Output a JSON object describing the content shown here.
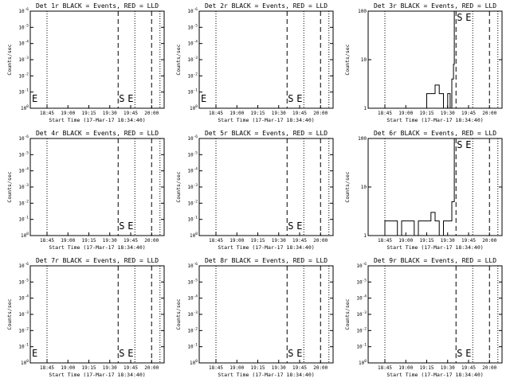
{
  "chart_data": [
    {
      "type": "line",
      "title": "Det 1r BLACK = Events, RED = LLD",
      "xlabel": "Start Time (17-Mar-17 18:34:40)",
      "ylabel": "Counts/sec",
      "scale": "log",
      "yticks": [
        "10^0",
        "10^-1",
        "10^-2",
        "10^-3",
        "10^-4",
        "10^-5",
        "10^-6"
      ],
      "xticks": [
        "18:45",
        "19:00",
        "19:15",
        "19:30",
        "19:45",
        "20:00"
      ],
      "markers": [
        "E",
        "S",
        "E"
      ],
      "events": []
    },
    {
      "type": "line",
      "title": "Det 2r BLACK = Events, RED = LLD",
      "xlabel": "Start Time (17-Mar-17 18:34:40)",
      "ylabel": "Counts/sec",
      "scale": "log",
      "yticks": [
        "10^0",
        "10^-1",
        "10^-2",
        "10^-3",
        "10^-4",
        "10^-5",
        "10^-6"
      ],
      "xticks": [
        "18:45",
        "19:00",
        "19:15",
        "19:30",
        "19:45",
        "20:00"
      ],
      "markers": [
        "E",
        "S",
        "E"
      ],
      "events": []
    },
    {
      "type": "line",
      "title": "Det 3r BLACK = Events, RED = LLD",
      "xlabel": "Start Time (17-Mar-17 18:34:40)",
      "ylabel": "Counts/sec",
      "scale": "log",
      "yticks": [
        "1",
        "10",
        "100"
      ],
      "xticks": [
        "18:45",
        "19:00",
        "19:15",
        "19:30",
        "19:45",
        "20:00"
      ],
      "markers": [
        "S",
        "E"
      ],
      "events": [
        [
          19.1,
          1
        ],
        [
          19.25,
          2
        ],
        [
          19.3,
          2
        ],
        [
          19.35,
          3
        ],
        [
          19.4,
          2
        ],
        [
          19.45,
          1
        ],
        [
          19.5,
          2
        ],
        [
          19.53,
          1
        ],
        [
          19.55,
          4
        ],
        [
          19.57,
          8
        ],
        [
          19.58,
          100
        ]
      ]
    },
    {
      "type": "line",
      "title": "Det 4r BLACK = Events, RED = LLD",
      "xlabel": "Start Time (17-Mar-17 18:34:40)",
      "ylabel": "Counts/sec",
      "scale": "log",
      "yticks": [
        "10^0",
        "10^-1",
        "10^-2",
        "10^-3",
        "10^-4",
        "10^-5",
        "10^-6"
      ],
      "xticks": [
        "18:45",
        "19:00",
        "19:15",
        "19:30",
        "19:45",
        "20:00"
      ],
      "markers": [
        "S",
        "E"
      ],
      "events": []
    },
    {
      "type": "line",
      "title": "Det 5r BLACK = Events, RED = LLD",
      "xlabel": "Start Time (17-Mar-17 18:34:40)",
      "ylabel": "Counts/sec",
      "scale": "log",
      "yticks": [
        "10^0",
        "10^-1",
        "10^-2",
        "10^-3",
        "10^-4",
        "10^-5",
        "10^-6"
      ],
      "xticks": [
        "18:45",
        "19:00",
        "19:15",
        "19:30",
        "19:45",
        "20:00"
      ],
      "markers": [
        "S",
        "E"
      ],
      "events": []
    },
    {
      "type": "line",
      "title": "Det 6r BLACK = Events, RED = LLD",
      "xlabel": "Start Time (17-Mar-17 18:34:40)",
      "ylabel": "Counts/sec",
      "scale": "log",
      "yticks": [
        "1",
        "10",
        "100"
      ],
      "xticks": [
        "18:45",
        "19:00",
        "19:15",
        "19:30",
        "19:45",
        "20:00"
      ],
      "markers": [
        "S",
        "E"
      ],
      "events": [
        [
          18.72,
          1
        ],
        [
          18.75,
          2
        ],
        [
          18.85,
          2
        ],
        [
          18.9,
          1
        ],
        [
          18.95,
          2
        ],
        [
          19.05,
          2
        ],
        [
          19.1,
          1
        ],
        [
          19.15,
          2
        ],
        [
          19.25,
          2
        ],
        [
          19.3,
          3
        ],
        [
          19.35,
          2
        ],
        [
          19.4,
          1
        ],
        [
          19.45,
          2
        ],
        [
          19.52,
          2
        ],
        [
          19.55,
          5
        ],
        [
          19.58,
          100
        ]
      ]
    },
    {
      "type": "line",
      "title": "Det 7r BLACK = Events, RED = LLD",
      "xlabel": "Start Time (17-Mar-17 18:34:40)",
      "ylabel": "Counts/sec",
      "scale": "log",
      "yticks": [
        "10^0",
        "10^-1",
        "10^-2",
        "10^-3",
        "10^-4",
        "10^-5",
        "10^-6"
      ],
      "xticks": [
        "18:45",
        "19:00",
        "19:15",
        "19:30",
        "19:45",
        "20:00"
      ],
      "markers": [
        "E",
        "S",
        "E"
      ],
      "events": []
    },
    {
      "type": "line",
      "title": "Det 8r BLACK = Events, RED = LLD",
      "xlabel": "Start Time (17-Mar-17 18:34:40)",
      "ylabel": "Counts/sec",
      "scale": "log",
      "yticks": [
        "10^0",
        "10^-1",
        "10^-2",
        "10^-3",
        "10^-4",
        "10^-5",
        "10^-6"
      ],
      "xticks": [
        "18:45",
        "19:00",
        "19:15",
        "19:30",
        "19:45",
        "20:00"
      ],
      "markers": [
        "S",
        "E"
      ],
      "events": []
    },
    {
      "type": "line",
      "title": "Det 9r BLACK = Events, RED = LLD",
      "xlabel": "Start Time (17-Mar-17 18:34:40)",
      "ylabel": "Counts/sec",
      "scale": "log",
      "yticks": [
        "10^0",
        "10^-1",
        "10^-2",
        "10^-3",
        "10^-4",
        "10^-5",
        "10^-6"
      ],
      "xticks": [
        "18:45",
        "19:00",
        "19:15",
        "19:30",
        "19:45",
        "20:00"
      ],
      "markers": [
        "S",
        "E"
      ],
      "events": []
    }
  ]
}
